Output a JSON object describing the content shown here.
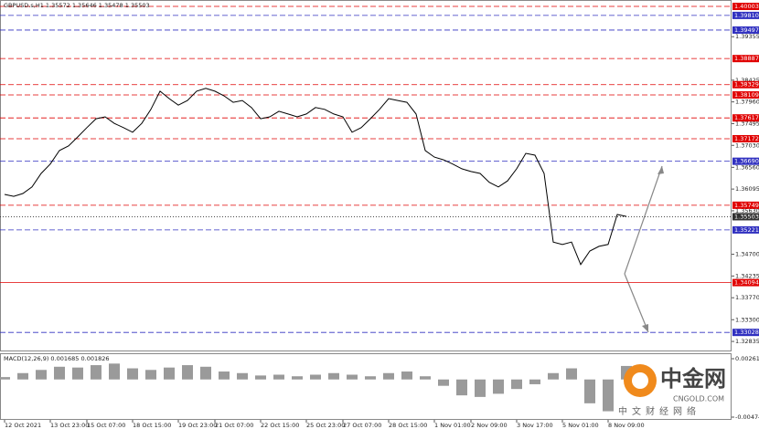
{
  "chart_data": [
    {
      "type": "line",
      "title": "GBPUSD.s,H1  1.35572 1.35646 1.35478 1.35503",
      "color": "#000000",
      "values": [
        1.3598,
        1.3594,
        1.36,
        1.3614,
        1.3643,
        1.3663,
        1.3692,
        1.3702,
        1.3721,
        1.3741,
        1.376,
        1.3764,
        1.375,
        1.3741,
        1.3731,
        1.375,
        1.378,
        1.3819,
        1.3803,
        1.3789,
        1.3799,
        1.3819,
        1.3825,
        1.3819,
        1.3809,
        1.3795,
        1.3799,
        1.3784,
        1.376,
        1.3764,
        1.3776,
        1.377,
        1.3764,
        1.377,
        1.3784,
        1.378,
        1.377,
        1.3764,
        1.3731,
        1.3741,
        1.376,
        1.378,
        1.3803,
        1.3799,
        1.3795,
        1.377,
        1.3692,
        1.3678,
        1.3672,
        1.3663,
        1.3653,
        1.3647,
        1.3643,
        1.3624,
        1.3614,
        1.3627,
        1.3653,
        1.3686,
        1.3682,
        1.3643,
        1.3496,
        1.3491,
        1.3496,
        1.3448,
        1.3477,
        1.3487,
        1.3491,
        1.3555,
        1.3551
      ],
      "xlim": [
        -0.5,
        79.5
      ],
      "xticks": [
        {
          "value": 0,
          "label": "12 Oct 2021"
        },
        {
          "value": 5,
          "label": "13 Oct 23:00"
        },
        {
          "value": 9,
          "label": "15 Oct 07:00"
        },
        {
          "value": 14,
          "label": "18 Oct 15:00"
        },
        {
          "value": 19,
          "label": "19 Oct 23:00"
        },
        {
          "value": 23,
          "label": "21 Oct 07:00"
        },
        {
          "value": 28,
          "label": "22 Oct 15:00"
        },
        {
          "value": 33,
          "label": "25 Oct 23:00"
        },
        {
          "value": 37,
          "label": "27 Oct 07:00"
        },
        {
          "value": 42,
          "label": "28 Oct 15:00"
        },
        {
          "value": 47,
          "label": "1 Nov 01:00"
        },
        {
          "value": 51,
          "label": "2 Nov 09:00"
        },
        {
          "value": 56,
          "label": "3 Nov 17:00"
        },
        {
          "value": 61,
          "label": "5 Nov 01:00"
        },
        {
          "value": 66,
          "label": "8 Nov 09:00"
        }
      ],
      "ylim": [
        1.3268,
        1.4014
      ],
      "yticks": [
        1.39355,
        1.38425,
        {
          "value": 1.3796,
          "label": "1.37960"
        },
        1.37495,
        {
          "value": 1.3703,
          "label": "1.37030"
        },
        {
          "value": 1.3656,
          "label": "1.36560"
        },
        1.36095,
        {
          "value": 1.3563,
          "label": "1.35630"
        },
        {
          "value": 1.347,
          "label": "1.34700"
        },
        1.34235,
        {
          "value": 1.3377,
          "label": "1.33770"
        },
        {
          "value": 1.333,
          "label": "1.33300"
        },
        1.32835
      ],
      "levels": [
        {
          "value": 1.40003,
          "color": "#e00000",
          "style": "dashed"
        },
        {
          "value": 1.3981,
          "label": "1.39810",
          "color": "#3030c0",
          "style": "dashed"
        },
        {
          "value": 1.39497,
          "color": "#3030c0",
          "style": "dashed"
        },
        {
          "value": 1.38887,
          "color": "#e00000",
          "style": "dashed"
        },
        {
          "value": 1.38329,
          "color": "#e00000",
          "style": "dashed"
        },
        {
          "value": 1.38109,
          "color": "#e00000",
          "style": "dashed"
        },
        {
          "value": 1.37617,
          "color": "#e00000",
          "style": "dashed"
        },
        {
          "value": 1.37172,
          "color": "#e00000",
          "style": "dashed"
        },
        {
          "value": 1.3669,
          "label": "1.36690",
          "color": "#3030c0",
          "style": "dashed"
        },
        {
          "value": 1.35749,
          "color": "#e00000",
          "style": "dashed"
        },
        {
          "value": 1.35503,
          "color": "#303030",
          "style": "dotted"
        },
        {
          "value": 1.35221,
          "color": "#3030c0",
          "style": "dashed"
        },
        {
          "value": 1.34094,
          "color": "#e00000",
          "style": "solid"
        },
        {
          "value": 1.33028,
          "color": "#3030c0",
          "style": "dashed"
        }
      ]
    },
    {
      "type": "bar",
      "title": "MACD(12,26,9) 0.001685 0.001826",
      "color": "#9a9a9a",
      "values": [
        0.0003,
        0.0008,
        0.0012,
        0.0016,
        0.0015,
        0.0018,
        0.002,
        0.0014,
        0.0012,
        0.0015,
        0.0018,
        0.0016,
        0.001,
        0.0008,
        0.0005,
        0.0006,
        0.0004,
        0.0006,
        0.0008,
        0.0006,
        0.0004,
        0.0008,
        0.001,
        0.0004,
        -0.0008,
        -0.002,
        -0.0022,
        -0.0018,
        -0.0012,
        -0.0006,
        0.0008,
        0.0014,
        -0.003,
        -0.004,
        0.0017
      ],
      "ylim": [
        -0.00474,
        0.00261
      ],
      "yticks": [
        0.00261,
        -0.00474
      ]
    }
  ],
  "watermark": {
    "brand": "中金网",
    "site": "CNGOLD.COM",
    "tagline": "中文财经网络"
  }
}
